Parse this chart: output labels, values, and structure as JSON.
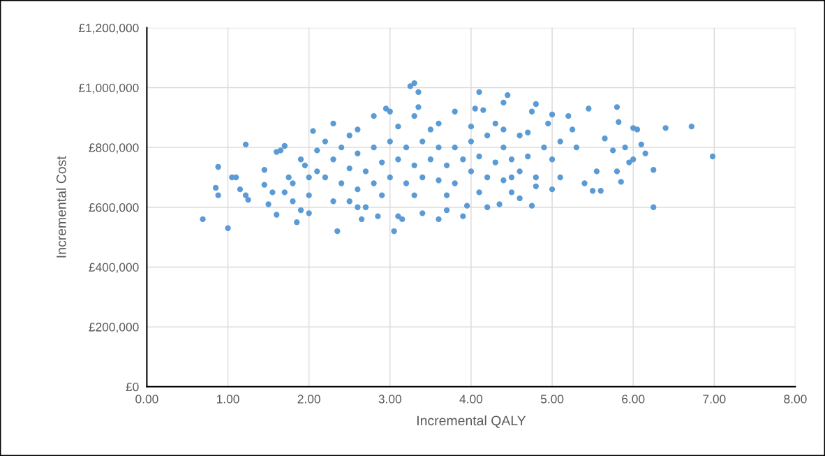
{
  "chart_data": {
    "type": "scatter",
    "xlabel": "Incremental QALY",
    "ylabel": "Incremental Cost",
    "x": [
      0.69,
      1.0,
      0.85,
      0.88,
      0.88,
      1.05,
      1.1,
      1.15,
      1.22,
      1.22,
      1.25,
      1.45,
      1.45,
      1.5,
      1.55,
      1.6,
      1.6,
      1.65,
      1.7,
      1.75,
      1.8,
      1.85,
      1.9,
      1.95,
      2.05,
      2.0,
      2.1,
      2.2,
      2.35,
      2.3,
      2.5,
      2.6,
      2.65,
      2.7,
      2.8,
      2.85,
      2.95,
      3.0,
      3.05,
      3.1,
      3.15,
      3.25,
      3.3,
      3.35,
      3.3,
      3.35,
      3.4,
      3.5,
      3.6,
      3.7,
      3.8,
      3.9,
      3.95,
      4.05,
      4.1,
      4.15,
      4.2,
      4.3,
      4.4,
      4.45,
      4.35,
      4.5,
      4.6,
      4.75,
      4.8,
      4.75,
      4.95,
      5.0,
      5.0,
      5.1,
      5.2,
      5.25,
      5.3,
      5.4,
      5.45,
      5.5,
      5.55,
      5.6,
      5.65,
      5.75,
      5.8,
      5.82,
      5.8,
      5.85,
      5.9,
      5.95,
      6.0,
      6.05,
      6.0,
      6.1,
      6.15,
      6.25,
      6.25,
      6.4,
      6.72,
      6.98,
      2.2,
      2.3,
      2.4,
      2.4,
      2.5,
      2.6,
      2.6,
      2.7,
      2.8,
      2.8,
      2.9,
      3.0,
      3.0,
      3.1,
      3.2,
      3.2,
      3.3,
      3.4,
      3.4,
      3.5,
      3.6,
      3.6,
      3.7,
      3.8,
      3.8,
      3.9,
      4.0,
      4.0,
      4.1,
      4.2,
      4.2,
      4.3,
      4.4,
      4.4,
      4.5,
      4.6,
      4.6,
      4.7,
      4.8,
      4.9,
      5.0,
      5.1,
      1.8,
      1.9,
      2.0,
      2.1,
      2.0,
      1.7,
      2.3,
      2.5,
      2.9,
      3.3,
      3.7,
      4.1,
      4.5,
      4.8,
      2.6,
      3.1,
      3.6,
      4.0,
      4.4,
      4.7
    ],
    "values": [
      560000,
      530000,
      665000,
      640000,
      735000,
      700000,
      700000,
      660000,
      810000,
      640000,
      625000,
      725000,
      675000,
      610000,
      650000,
      575000,
      785000,
      790000,
      805000,
      700000,
      620000,
      550000,
      590000,
      740000,
      855000,
      580000,
      790000,
      820000,
      520000,
      880000,
      840000,
      600000,
      560000,
      600000,
      905000,
      570000,
      930000,
      920000,
      520000,
      570000,
      560000,
      1005000,
      1015000,
      985000,
      905000,
      935000,
      580000,
      860000,
      560000,
      590000,
      920000,
      570000,
      605000,
      930000,
      985000,
      925000,
      600000,
      880000,
      950000,
      975000,
      610000,
      700000,
      630000,
      605000,
      945000,
      920000,
      880000,
      910000,
      660000,
      700000,
      905000,
      860000,
      800000,
      680000,
      930000,
      655000,
      720000,
      655000,
      830000,
      790000,
      935000,
      885000,
      720000,
      685000,
      800000,
      750000,
      865000,
      860000,
      760000,
      810000,
      780000,
      725000,
      600000,
      865000,
      870000,
      770000,
      700000,
      760000,
      680000,
      800000,
      730000,
      660000,
      780000,
      720000,
      680000,
      800000,
      750000,
      700000,
      820000,
      760000,
      680000,
      800000,
      740000,
      700000,
      820000,
      760000,
      690000,
      800000,
      740000,
      680000,
      800000,
      760000,
      720000,
      820000,
      770000,
      700000,
      840000,
      750000,
      690000,
      800000,
      760000,
      720000,
      840000,
      770000,
      700000,
      800000,
      760000,
      820000,
      680000,
      760000,
      640000,
      720000,
      700000,
      650000,
      620000,
      620000,
      640000,
      640000,
      640000,
      650000,
      650000,
      670000,
      860000,
      870000,
      880000,
      870000,
      860000,
      850000
    ],
    "color": "#5b9bd5",
    "marker": "circle",
    "xlim": [
      0,
      8
    ],
    "xticks": [
      {
        "value": 0,
        "label": "0.00"
      },
      {
        "value": 1,
        "label": "1.00"
      },
      {
        "value": 2,
        "label": "2.00"
      },
      {
        "value": 3,
        "label": "3.00"
      },
      {
        "value": 4,
        "label": "4.00"
      },
      {
        "value": 5,
        "label": "5.00"
      },
      {
        "value": 6,
        "label": "6.00"
      },
      {
        "value": 7,
        "label": "7.00"
      },
      {
        "value": 8,
        "label": "8.00"
      }
    ],
    "ylim": [
      0,
      1200000
    ],
    "yticks": [
      {
        "value": 0,
        "label": "£0"
      },
      {
        "value": 200000,
        "label": "£200,000"
      },
      {
        "value": 400000,
        "label": "£400,000"
      },
      {
        "value": 600000,
        "label": "£600,000"
      },
      {
        "value": 800000,
        "label": "£800,000"
      },
      {
        "value": 1000000,
        "label": "£1,000,000"
      },
      {
        "value": 1200000,
        "label": "£1,200,000"
      }
    ],
    "grid": true
  }
}
